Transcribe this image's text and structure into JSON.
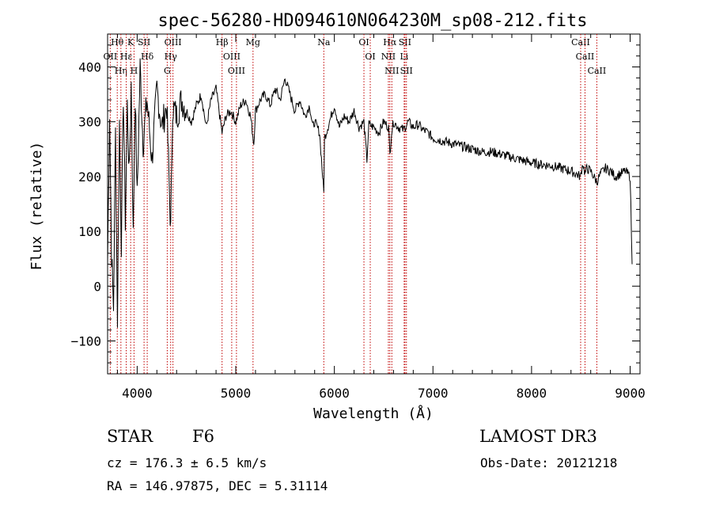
{
  "chart_data": {
    "type": "line",
    "title": "spec-56280-HD094610N064230M_sp08-212.fits",
    "xlabel": "Wavelength (Å)",
    "ylabel": "Flux (relative)",
    "xlim": [
      3700,
      9100
    ],
    "ylim": [
      -160,
      460
    ],
    "x_ticks": [
      4000,
      5000,
      6000,
      7000,
      8000,
      9000
    ],
    "y_ticks": [
      -100,
      0,
      100,
      200,
      300,
      400
    ],
    "series": [
      {
        "name": "flux",
        "x": [
          3700,
          3720,
          3740,
          3760,
          3780,
          3800,
          3820,
          3840,
          3860,
          3880,
          3900,
          3920,
          3940,
          3960,
          3980,
          4000,
          4030,
          4060,
          4100,
          4150,
          4200,
          4250,
          4300,
          4340,
          4360,
          4400,
          4450,
          4500,
          4550,
          4600,
          4650,
          4700,
          4750,
          4800,
          4861,
          4900,
          4950,
          5000,
          5050,
          5100,
          5150,
          5183,
          5200,
          5250,
          5300,
          5350,
          5400,
          5450,
          5500,
          5550,
          5600,
          5650,
          5700,
          5750,
          5780,
          5800,
          5850,
          5893,
          5900,
          5950,
          6000,
          6050,
          6100,
          6150,
          6200,
          6250,
          6300,
          6330,
          6350,
          6400,
          6450,
          6500,
          6550,
          6563,
          6580,
          6600,
          6650,
          6700,
          6750,
          6800,
          6850,
          6900,
          6950,
          7000,
          7100,
          7200,
          7300,
          7400,
          7500,
          7600,
          7700,
          7800,
          7900,
          8000,
          8100,
          8200,
          8300,
          8400,
          8498,
          8520,
          8542,
          8560,
          8600,
          8662,
          8700,
          8750,
          8800,
          8850,
          8900,
          8950,
          9000,
          9020
        ],
        "values": [
          40,
          320,
          60,
          -40,
          280,
          -60,
          300,
          80,
          350,
          120,
          330,
          200,
          370,
          90,
          350,
          160,
          400,
          260,
          340,
          230,
          360,
          290,
          330,
          100,
          330,
          310,
          340,
          320,
          300,
          330,
          350,
          290,
          340,
          360,
          280,
          310,
          320,
          300,
          330,
          340,
          310,
          260,
          320,
          340,
          350,
          330,
          360,
          340,
          380,
          350,
          320,
          340,
          310,
          330,
          290,
          300,
          280,
          170,
          270,
          300,
          330,
          290,
          310,
          300,
          320,
          290,
          300,
          230,
          295,
          290,
          280,
          300,
          290,
          240,
          280,
          300,
          290,
          285,
          300,
          290,
          295,
          285,
          280,
          270,
          265,
          260,
          255,
          250,
          245,
          245,
          240,
          235,
          230,
          225,
          222,
          220,
          215,
          210,
          200,
          225,
          205,
          215,
          210,
          190,
          205,
          215,
          210,
          200,
          205,
          210,
          200,
          40
        ],
        "color": "#000000"
      }
    ],
    "line_markers": [
      {
        "label": "Hθ",
        "x": 3798
      },
      {
        "label": "OII",
        "x": 3727
      },
      {
        "label": "Hη",
        "x": 3835
      },
      {
        "label": "K",
        "x": 3934
      },
      {
        "label": "Hε",
        "x": 3889
      },
      {
        "label": "H",
        "x": 3968
      },
      {
        "label": "SII",
        "x": 4070
      },
      {
        "label": "Hδ",
        "x": 4102
      },
      {
        "label": "OIII",
        "x": 4363
      },
      {
        "label": "Hγ",
        "x": 4340
      },
      {
        "label": "G",
        "x": 4305
      },
      {
        "label": "Hβ",
        "x": 4861
      },
      {
        "label": "OIII",
        "x": 4959
      },
      {
        "label": "OIII",
        "x": 5007
      },
      {
        "label": "Mg",
        "x": 5175
      },
      {
        "label": "Na",
        "x": 5893
      },
      {
        "label": "OI",
        "x": 6300
      },
      {
        "label": "OI",
        "x": 6364
      },
      {
        "label": "Hα",
        "x": 6563
      },
      {
        "label": "NII",
        "x": 6548
      },
      {
        "label": "NII",
        "x": 6583
      },
      {
        "label": "SII",
        "x": 6716
      },
      {
        "label": "Li",
        "x": 6708
      },
      {
        "label": "SII",
        "x": 6731
      },
      {
        "label": "CaII",
        "x": 8498
      },
      {
        "label": "CaII",
        "x": 8542
      },
      {
        "label": "CaII",
        "x": 8662
      }
    ]
  },
  "info": {
    "object_class": "STAR",
    "subclass": "F6",
    "survey": "LAMOST DR3",
    "cz": "cz = 176.3 ± 6.5 km/s",
    "obs_date": "Obs-Date: 20121218",
    "coords": "RA = 146.97875, DEC =   5.31114"
  }
}
